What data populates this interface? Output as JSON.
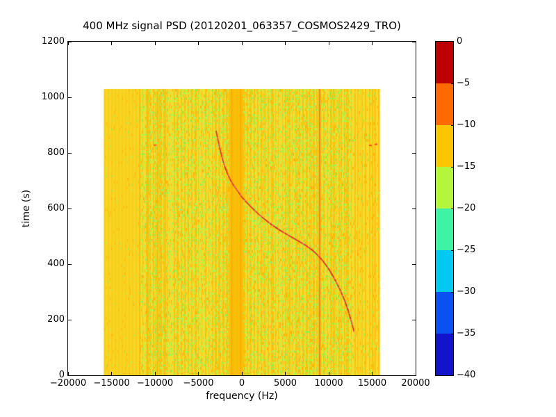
{
  "chart_data": {
    "type": "heatmap",
    "title": "400 MHz signal PSD (20120201_063357_COSMOS2429_TRO)",
    "xlabel": "frequency (Hz)",
    "ylabel": "time (s)",
    "xlim": [
      -20000,
      20000
    ],
    "ylim": [
      0,
      1200
    ],
    "grid": false,
    "x_ticks": {
      "values": [
        -20000,
        -15000,
        -10000,
        -5000,
        0,
        5000,
        10000,
        15000,
        20000
      ],
      "labels": [
        "−20000",
        "−15000",
        "−10000",
        "−5000",
        "0",
        "5000",
        "10000",
        "15000",
        "20000"
      ]
    },
    "y_ticks": {
      "values": [
        0,
        200,
        400,
        600,
        800,
        1000,
        1200
      ],
      "labels": [
        "0",
        "200",
        "400",
        "600",
        "800",
        "1000",
        "1200"
      ]
    },
    "colorbar": {
      "tick_values": [
        0,
        -5,
        -10,
        -15,
        -20,
        -25,
        -30,
        -35,
        -40
      ],
      "tick_labels": [
        "0",
        "−5",
        "−10",
        "−15",
        "−20",
        "−25",
        "−30",
        "−35",
        "−40"
      ],
      "segment_colors_top_to_bottom": [
        "#bf0000",
        "#ff6900",
        "#fdc500",
        "#b3f63b",
        "#3ff3a5",
        "#00c9f2",
        "#0852f2",
        "#1413cc"
      ]
    },
    "data_extent": {
      "freq_hz": [
        -15900,
        15900
      ],
      "time_s": [
        0,
        1030
      ]
    },
    "background_texture": {
      "base": "#f6d826",
      "stripe_amber": "#fbc30d",
      "stripe_yellow": "#f4dd2f",
      "flat_amber": "#f9cd18",
      "flat_yellow": "#f7d626",
      "speckle_green": "#b8f24b",
      "speckle_green_bright": "#95ec5a",
      "speckle_amber": "#fdb50a",
      "flat_left_band_max_freq": -11700,
      "amber_band": {
        "freq_range": [
          -1450,
          150
        ],
        "color": "#fbbd06",
        "core_lines_freq": [
          -1150,
          -150
        ],
        "core_color": "#f8a504"
      },
      "vertical_lines_freq": [
        -11750,
        -10800,
        -9650,
        -8800
      ],
      "vertical_line_color": "#f7b306",
      "carrier_line": {
        "freq": 8950,
        "color": "#ef5a22",
        "halo_color": "#fcbb08"
      },
      "red_specks": [
        {
          "f": -10000,
          "t": 828
        },
        {
          "f": 14800,
          "t": 827
        },
        {
          "f": 15440,
          "t": 831
        }
      ]
    },
    "doppler_track": {
      "color": "#d93228",
      "highlight_color": "#ff9e93",
      "shadow_color": "#aa1f16",
      "points": [
        {
          "f": -2950,
          "t": 878
        },
        {
          "f": -2400,
          "t": 790
        },
        {
          "f": -1450,
          "t": 705
        },
        {
          "f": -300,
          "t": 655
        },
        {
          "f": 0,
          "t": 640
        },
        {
          "f": 2000,
          "t": 575
        },
        {
          "f": 4160,
          "t": 525
        },
        {
          "f": 6000,
          "t": 492
        },
        {
          "f": 7900,
          "t": 458
        },
        {
          "f": 9500,
          "t": 408
        },
        {
          "f": 10800,
          "t": 342
        },
        {
          "f": 11900,
          "t": 267
        },
        {
          "f": 12560,
          "t": 200
        },
        {
          "f": 12900,
          "t": 158
        }
      ]
    }
  }
}
